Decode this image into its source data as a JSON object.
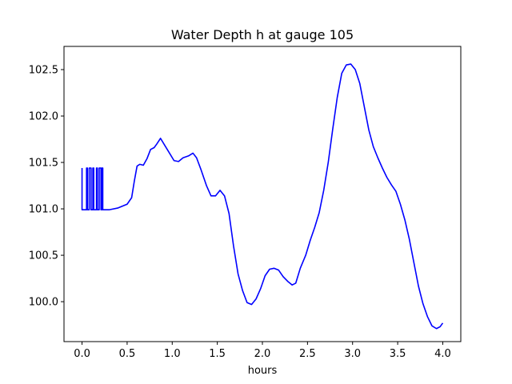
{
  "chart_data": {
    "type": "line",
    "title": "Water Depth h at gauge 105",
    "xlabel": "hours",
    "ylabel": "",
    "xlim": [
      -0.2,
      4.2
    ],
    "ylim": [
      99.57,
      102.75
    ],
    "xticks": [
      0.0,
      0.5,
      1.0,
      1.5,
      2.0,
      2.5,
      3.0,
      3.5,
      4.0
    ],
    "xtick_labels": [
      "0.0",
      "0.5",
      "1.0",
      "1.5",
      "2.0",
      "2.5",
      "3.0",
      "3.5",
      "4.0"
    ],
    "yticks": [
      100.0,
      100.5,
      101.0,
      101.5,
      102.0,
      102.5
    ],
    "ytick_labels": [
      "100.0",
      "100.5",
      "101.0",
      "101.5",
      "102.0",
      "102.5"
    ],
    "grid": false,
    "series": [
      {
        "color": "#0000ff",
        "points": [
          [
            0.0,
            101.44
          ],
          [
            0.0,
            100.99
          ],
          [
            0.05,
            100.99
          ],
          [
            0.05,
            101.44
          ],
          [
            0.06,
            101.44
          ],
          [
            0.06,
            100.99
          ],
          [
            0.08,
            100.99
          ],
          [
            0.08,
            101.44
          ],
          [
            0.1,
            101.44
          ],
          [
            0.1,
            100.99
          ],
          [
            0.12,
            100.99
          ],
          [
            0.12,
            101.44
          ],
          [
            0.13,
            101.44
          ],
          [
            0.13,
            100.99
          ],
          [
            0.16,
            100.99
          ],
          [
            0.16,
            101.44
          ],
          [
            0.17,
            101.44
          ],
          [
            0.17,
            100.99
          ],
          [
            0.19,
            100.99
          ],
          [
            0.19,
            101.44
          ],
          [
            0.21,
            101.44
          ],
          [
            0.21,
            100.99
          ],
          [
            0.22,
            100.99
          ],
          [
            0.22,
            101.44
          ],
          [
            0.23,
            101.44
          ],
          [
            0.23,
            100.99
          ],
          [
            0.3,
            100.99
          ],
          [
            0.4,
            101.01
          ],
          [
            0.5,
            101.05
          ],
          [
            0.55,
            101.12
          ],
          [
            0.58,
            101.3
          ],
          [
            0.61,
            101.46
          ],
          [
            0.64,
            101.48
          ],
          [
            0.68,
            101.47
          ],
          [
            0.72,
            101.54
          ],
          [
            0.76,
            101.64
          ],
          [
            0.8,
            101.66
          ],
          [
            0.83,
            101.7
          ],
          [
            0.87,
            101.76
          ],
          [
            0.92,
            101.68
          ],
          [
            0.97,
            101.6
          ],
          [
            1.02,
            101.52
          ],
          [
            1.07,
            101.51
          ],
          [
            1.12,
            101.55
          ],
          [
            1.18,
            101.57
          ],
          [
            1.23,
            101.6
          ],
          [
            1.27,
            101.55
          ],
          [
            1.32,
            101.42
          ],
          [
            1.38,
            101.25
          ],
          [
            1.43,
            101.14
          ],
          [
            1.48,
            101.14
          ],
          [
            1.53,
            101.2
          ],
          [
            1.58,
            101.14
          ],
          [
            1.63,
            100.95
          ],
          [
            1.68,
            100.6
          ],
          [
            1.73,
            100.3
          ],
          [
            1.78,
            100.12
          ],
          [
            1.83,
            99.99
          ],
          [
            1.88,
            99.97
          ],
          [
            1.93,
            100.03
          ],
          [
            1.98,
            100.14
          ],
          [
            2.03,
            100.28
          ],
          [
            2.08,
            100.35
          ],
          [
            2.13,
            100.36
          ],
          [
            2.18,
            100.34
          ],
          [
            2.23,
            100.27
          ],
          [
            2.28,
            100.22
          ],
          [
            2.33,
            100.18
          ],
          [
            2.37,
            100.2
          ],
          [
            2.42,
            100.36
          ],
          [
            2.48,
            100.5
          ],
          [
            2.53,
            100.66
          ],
          [
            2.58,
            100.8
          ],
          [
            2.63,
            100.96
          ],
          [
            2.68,
            101.2
          ],
          [
            2.73,
            101.5
          ],
          [
            2.78,
            101.86
          ],
          [
            2.83,
            102.2
          ],
          [
            2.88,
            102.46
          ],
          [
            2.93,
            102.55
          ],
          [
            2.98,
            102.56
          ],
          [
            3.03,
            102.5
          ],
          [
            3.08,
            102.35
          ],
          [
            3.13,
            102.1
          ],
          [
            3.18,
            101.85
          ],
          [
            3.23,
            101.67
          ],
          [
            3.28,
            101.55
          ],
          [
            3.33,
            101.44
          ],
          [
            3.38,
            101.34
          ],
          [
            3.43,
            101.26
          ],
          [
            3.48,
            101.19
          ],
          [
            3.53,
            101.05
          ],
          [
            3.58,
            100.88
          ],
          [
            3.63,
            100.67
          ],
          [
            3.68,
            100.42
          ],
          [
            3.73,
            100.17
          ],
          [
            3.78,
            99.98
          ],
          [
            3.83,
            99.84
          ],
          [
            3.88,
            99.74
          ],
          [
            3.93,
            99.71
          ],
          [
            3.97,
            99.73
          ],
          [
            4.0,
            99.77
          ]
        ]
      }
    ]
  }
}
